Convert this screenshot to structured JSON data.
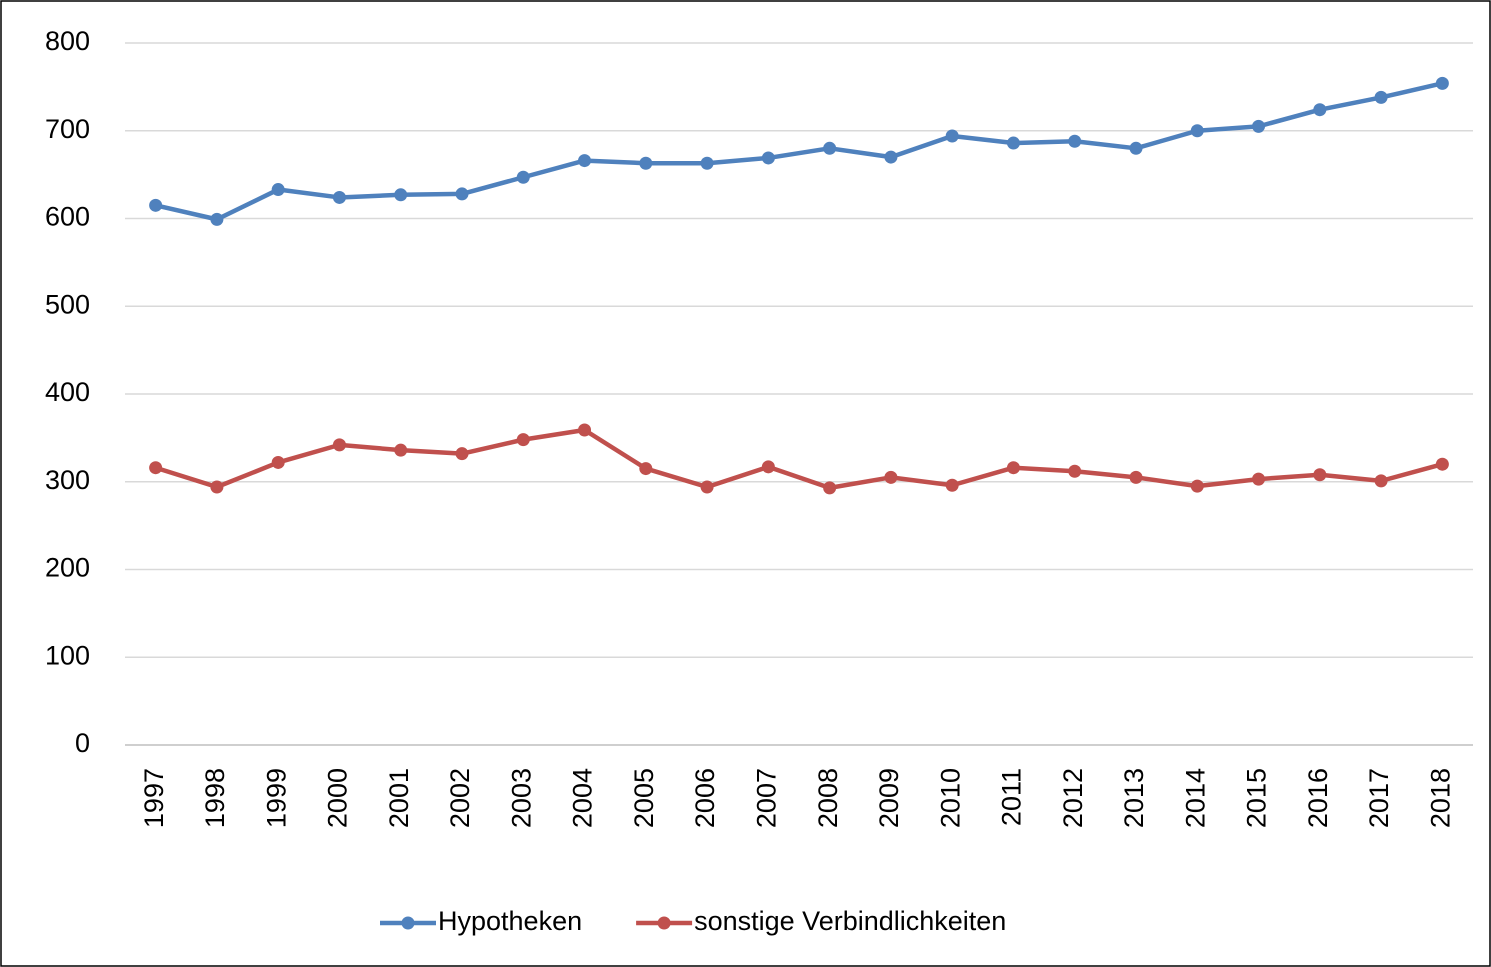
{
  "chart_data": {
    "type": "line",
    "categories": [
      "1997",
      "1998",
      "1999",
      "2000",
      "2001",
      "2002",
      "2003",
      "2004",
      "2005",
      "2006",
      "2007",
      "2008",
      "2009",
      "2010",
      "2011",
      "2012",
      "2013",
      "2014",
      "2015",
      "2016",
      "2017",
      "2018"
    ],
    "series": [
      {
        "name": "Hypotheken",
        "color": "#4f81bd",
        "values": [
          615,
          599,
          633,
          624,
          627,
          628,
          647,
          666,
          663,
          663,
          669,
          680,
          670,
          694,
          686,
          688,
          680,
          700,
          705,
          724,
          738,
          754
        ]
      },
      {
        "name": "sonstige Verbindlichkeiten",
        "color": "#c0504d",
        "values": [
          316,
          294,
          322,
          342,
          336,
          332,
          348,
          359,
          315,
          294,
          317,
          293,
          305,
          296,
          316,
          312,
          305,
          295,
          303,
          308,
          301,
          320
        ]
      }
    ],
    "ylim": [
      0,
      800
    ],
    "yticks": [
      0,
      100,
      200,
      300,
      400,
      500,
      600,
      700,
      800
    ],
    "grid": true,
    "legend": "bottom"
  }
}
